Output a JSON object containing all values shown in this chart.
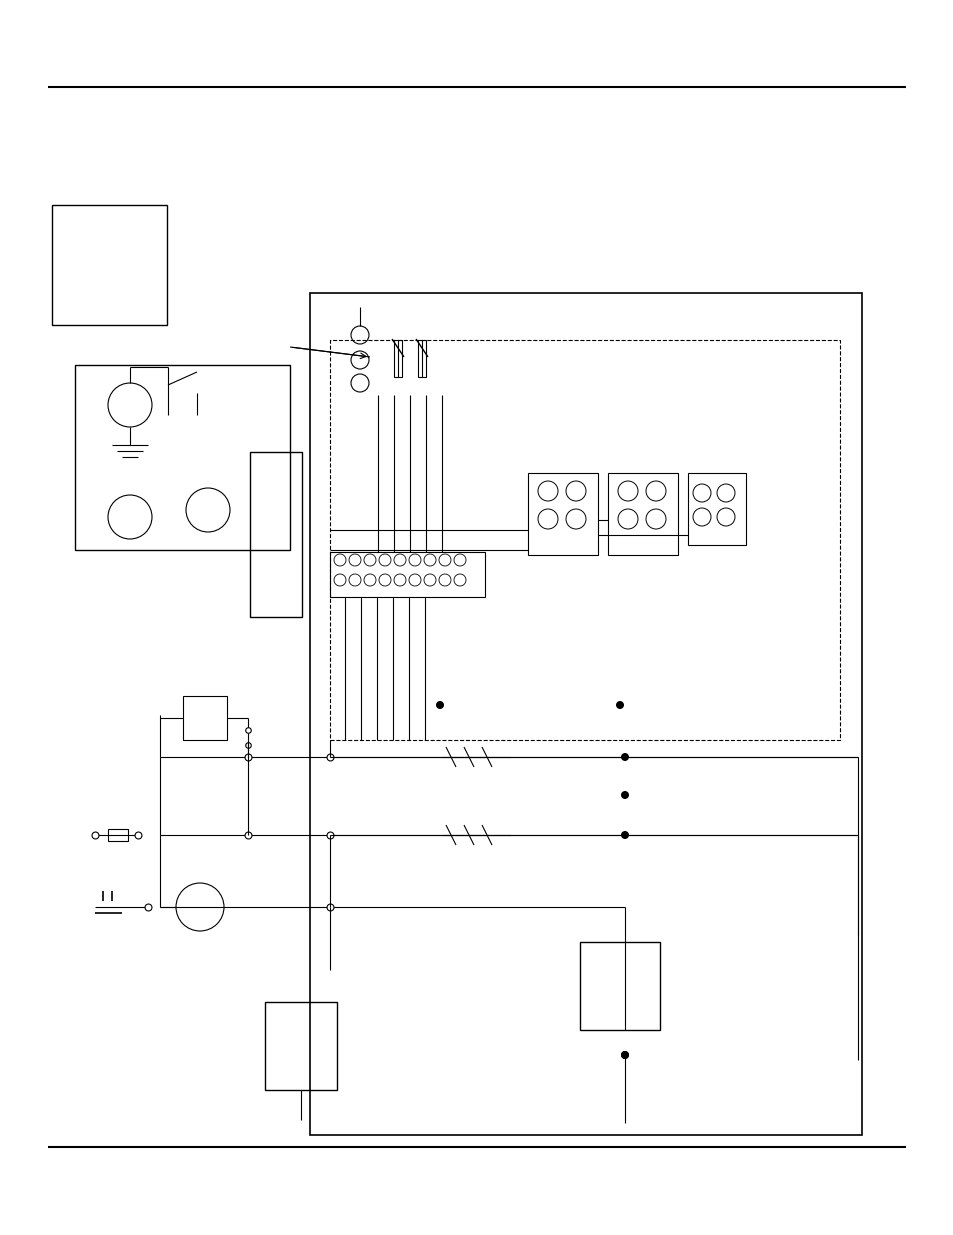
{
  "bg_color": "#ffffff",
  "line_color": "#000000",
  "page_width": 9.54,
  "page_height": 12.35
}
